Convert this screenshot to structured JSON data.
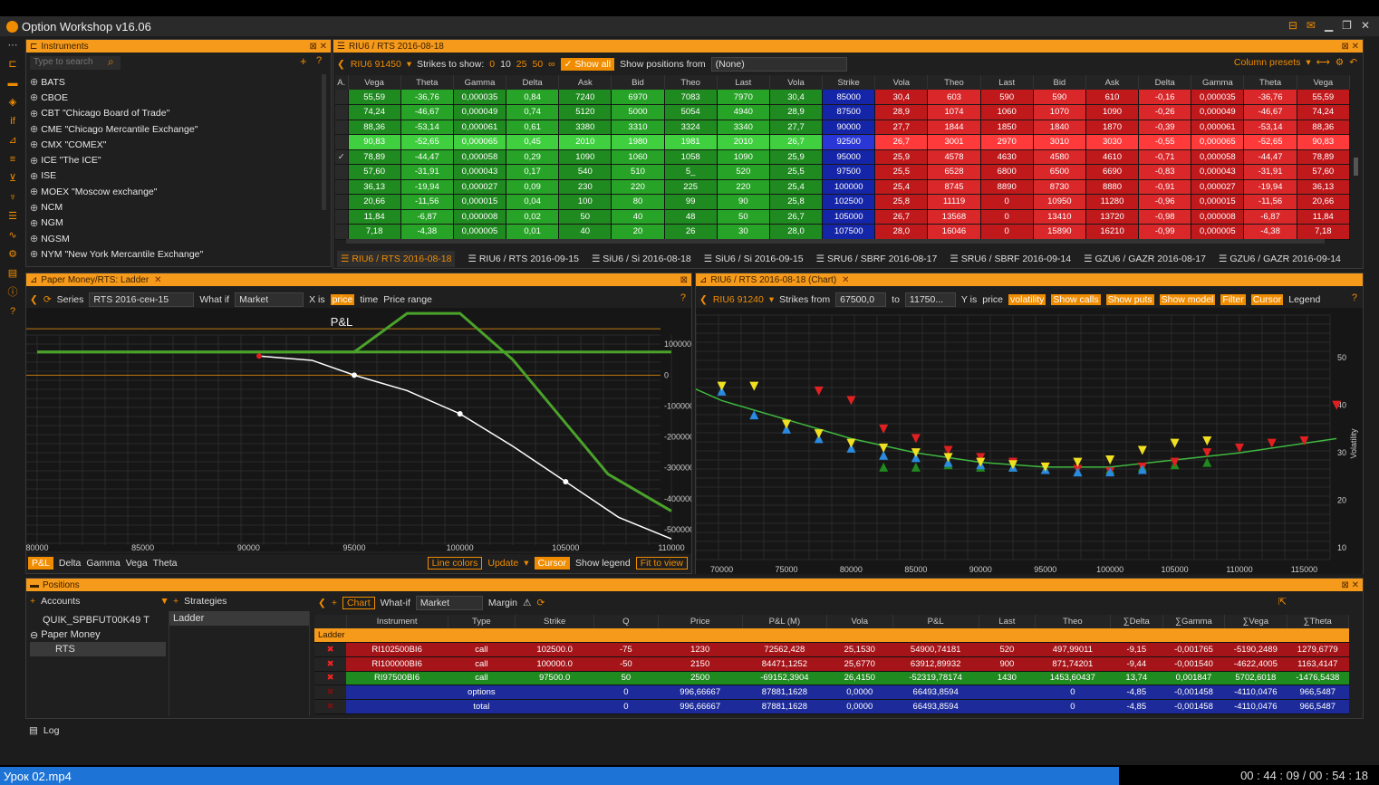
{
  "app": {
    "title": "Option Workshop v16.06"
  },
  "instruments": {
    "header": "Instruments",
    "search_placeholder": "Type to search",
    "items": [
      "BATS",
      "CBOE",
      "CBT \"Chicago Board of Trade\"",
      "CME \"Chicago Mercantile Exchange\"",
      "CMX \"COMEX\"",
      "ICE \"The ICE\"",
      "ISE",
      "MOEX \"Moscow exchange\"",
      "NCM",
      "NGM",
      "NGSM",
      "NYM \"New York Mercantile Exchange\""
    ]
  },
  "board": {
    "header": "RIU6 / RTS 2016-08-18",
    "future": "RIU6 91450",
    "strikes_label": "Strikes to show:",
    "strike_opts": [
      "0",
      "10",
      "25",
      "50",
      "∞"
    ],
    "show_all": "Show all",
    "positions_from_label": "Show positions from",
    "positions_from_value": "(None)",
    "column_presets": "Column presets",
    "columns": [
      "A.",
      "Vega",
      "Theta",
      "Gamma",
      "Delta",
      "Ask",
      "Bid",
      "Theo",
      "Last",
      "Vola",
      "Strike",
      "Vola",
      "Theo",
      "Last",
      "Bid",
      "Ask",
      "Delta",
      "Gamma",
      "Theta",
      "Vega"
    ],
    "rows": [
      {
        "check": "",
        "c": [
          "55,59",
          "-36,76",
          "0,000035",
          "0,84",
          "7240",
          "6970",
          "7083",
          "7970",
          "30,4"
        ],
        "strike": "85000",
        "p": [
          "30,4",
          "603",
          "590",
          "590",
          "610",
          "-0,16",
          "0,000035",
          "-36,76",
          "55,59"
        ]
      },
      {
        "check": "",
        "c": [
          "74,24",
          "-46,67",
          "0,000049",
          "0,74",
          "5120",
          "5000",
          "5054",
          "4940",
          "28,9"
        ],
        "strike": "87500",
        "p": [
          "28,9",
          "1074",
          "1060",
          "1070",
          "1090",
          "-0,26",
          "0,000049",
          "-46,67",
          "74,24"
        ]
      },
      {
        "check": "",
        "c": [
          "88,36",
          "-53,14",
          "0,000061",
          "0,61",
          "3380",
          "3310",
          "3324",
          "3340",
          "27,7"
        ],
        "strike": "90000",
        "p": [
          "27,7",
          "1844",
          "1850",
          "1840",
          "1870",
          "-0,39",
          "0,000061",
          "-53,14",
          "88,36"
        ]
      },
      {
        "check": "",
        "c": [
          "90,83",
          "-52,65",
          "0,000065",
          "0,45",
          "2010",
          "1980",
          "1981",
          "2010",
          "26,7"
        ],
        "strike": "92500",
        "p": [
          "26,7",
          "3001",
          "2970",
          "3010",
          "3030",
          "-0,55",
          "0,000065",
          "-52,65",
          "90,83"
        ]
      },
      {
        "check": "✓",
        "c": [
          "78,89",
          "-44,47",
          "0,000058",
          "0,29",
          "1090",
          "1060",
          "1058",
          "1090",
          "25,9"
        ],
        "strike": "95000",
        "p": [
          "25,9",
          "4578",
          "4630",
          "4580",
          "4610",
          "-0,71",
          "0,000058",
          "-44,47",
          "78,89"
        ]
      },
      {
        "check": "",
        "c": [
          "57,60",
          "-31,91",
          "0,000043",
          "0,17",
          "540",
          "510",
          "5_",
          "520",
          "25,5"
        ],
        "strike": "97500",
        "p": [
          "25,5",
          "6528",
          "6800",
          "6500",
          "6690",
          "-0,83",
          "0,000043",
          "-31,91",
          "57,60"
        ]
      },
      {
        "check": "",
        "c": [
          "36,13",
          "-19,94",
          "0,000027",
          "0,09",
          "230",
          "220",
          "225",
          "220",
          "25,4"
        ],
        "strike": "100000",
        "p": [
          "25,4",
          "8745",
          "8890",
          "8730",
          "8880",
          "-0,91",
          "0,000027",
          "-19,94",
          "36,13"
        ]
      },
      {
        "check": "",
        "c": [
          "20,66",
          "-11,56",
          "0,000015",
          "0,04",
          "100",
          "80",
          "99",
          "90",
          "25,8"
        ],
        "strike": "102500",
        "p": [
          "25,8",
          "11119",
          "0",
          "10950",
          "11280",
          "-0,96",
          "0,000015",
          "-11,56",
          "20,66"
        ]
      },
      {
        "check": "",
        "c": [
          "11,84",
          "-6,87",
          "0,000008",
          "0,02",
          "50",
          "40",
          "48",
          "50",
          "26,7"
        ],
        "strike": "105000",
        "p": [
          "26,7",
          "13568",
          "0",
          "13410",
          "13720",
          "-0,98",
          "0,000008",
          "-6,87",
          "11,84"
        ]
      },
      {
        "check": "",
        "c": [
          "7,18",
          "-4,38",
          "0,000005",
          "0,01",
          "40",
          "20",
          "26",
          "30",
          "28,0"
        ],
        "strike": "107500",
        "p": [
          "28,0",
          "16046",
          "0",
          "15890",
          "16210",
          "-0,99",
          "0,000005",
          "-4,38",
          "7,18"
        ]
      }
    ],
    "tabs": [
      "RIU6 / RTS 2016-08-18",
      "RIU6 / RTS 2016-09-15",
      "SiU6 / Si 2016-08-18",
      "SiU6 / Si 2016-09-15",
      "SRU6 / SBRF 2016-08-17",
      "SRU6 / SBRF 2016-09-14",
      "GZU6 / GAZR 2016-08-17",
      "GZU6 / GAZR 2016-09-14"
    ]
  },
  "pl": {
    "header": "Paper Money/RTS: Ladder",
    "series_label": "Series",
    "series_value": "RTS 2016-сен-15",
    "whatif_label": "What if",
    "whatif_value": "Market",
    "x_is": "X is",
    "x_price": "price",
    "x_time": "time",
    "price_range": "Price range",
    "bottom_tabs": [
      "P&L",
      "Delta",
      "Gamma",
      "Vega",
      "Theta"
    ],
    "line_colors": "Line colors",
    "update": "Update",
    "cursor": "Cursor",
    "show_legend": "Show legend",
    "fit_to_view": "Fit to view"
  },
  "volchart": {
    "header": "RIU6 / RTS 2016-08-18 (Chart)",
    "future": "RIU6 91240",
    "strikes_from": "Strikes from",
    "from_value": "67500,0",
    "to_label": "to",
    "to_value": "11750...",
    "y_is": "Y is",
    "y_price": "price",
    "y_vol": "volatility",
    "buttons": [
      "Show calls",
      "Show puts",
      "Show model",
      "Filter",
      "Cursor",
      "Legend"
    ]
  },
  "chart_data": [
    {
      "type": "line",
      "title": "P&L",
      "xlabel": "",
      "ylabel": "",
      "xlim": [
        80000,
        110000
      ],
      "ylim": [
        -550000,
        130000
      ],
      "x_ticks": [
        "80000",
        "85000",
        "90000",
        "95000",
        "100000",
        "105000",
        "110000"
      ],
      "y_ticks": [
        "100000",
        "0",
        "-100000",
        "-200000",
        "-300000",
        "-400000",
        "-500000"
      ],
      "series": [
        {
          "x": [
            80000,
            90000,
            93000,
            95000,
            100000,
            104000,
            107000,
            110000
          ],
          "values": [
            75000,
            75000,
            75000,
            75000,
            75000,
            75000,
            75000,
            75000
          ],
          "color": "#4aa22a"
        },
        {
          "x": [
            80000,
            90000,
            93000,
            95000,
            97500,
            100000,
            102500,
            107000,
            110000
          ],
          "values": [
            75000,
            75000,
            75000,
            75000,
            200000,
            200000,
            50000,
            -320000,
            -440000
          ],
          "color": "#4aa22a"
        },
        {
          "x": [
            90500,
            93000,
            95000,
            97500,
            100000,
            102500,
            105000,
            107500,
            110000
          ],
          "values": [
            62000,
            48000,
            0,
            -50000,
            -125000,
            -230000,
            -345000,
            -460000,
            -530000
          ],
          "color": "#ffffff"
        }
      ],
      "hlines": [
        0,
        150000
      ]
    },
    {
      "type": "scatter",
      "xlabel": "",
      "ylabel": "Volatility",
      "xlim": [
        68000,
        117000
      ],
      "ylim": [
        6,
        59
      ],
      "x_ticks": [
        "70000",
        "75000",
        "80000",
        "85000",
        "90000",
        "95000",
        "100000",
        "105000",
        "110000",
        "115000"
      ],
      "y_ticks": [
        "50",
        "40",
        "30",
        "20",
        "10"
      ],
      "model_curve": {
        "x": [
          67500,
          70000,
          75000,
          80000,
          85000,
          90000,
          95000,
          100000,
          105000,
          110000,
          115000,
          117500
        ],
        "values": [
          44,
          41,
          37,
          33,
          30,
          28,
          27,
          27,
          28.5,
          30,
          32,
          33
        ]
      },
      "ask_yellow": {
        "x": [
          70000,
          72500,
          75000,
          77500,
          80000,
          82500,
          85000,
          87500,
          90000,
          92500,
          95000,
          97500,
          100000,
          102500,
          105000,
          107500
        ],
        "values": [
          44,
          44,
          36,
          34,
          32,
          31,
          30,
          29,
          28,
          27.5,
          27,
          28,
          28.5,
          30.5,
          32,
          32.5
        ]
      },
      "bid_blue": {
        "x": [
          67500,
          70000,
          72500,
          75000,
          77500,
          80000,
          82500,
          85000,
          87500,
          90000,
          92500,
          95000,
          97500,
          100000,
          102500
        ],
        "values": [
          45,
          43,
          38,
          35,
          33,
          31,
          29.5,
          29,
          28,
          27.5,
          27,
          26.5,
          26,
          26,
          26.5
        ]
      },
      "red_marks": {
        "x": [
          77500,
          80000,
          82500,
          85000,
          87500,
          90000,
          92500,
          95000,
          97500,
          100000,
          102500,
          105000,
          107500,
          110000,
          112500,
          115000,
          117500
        ],
        "values": [
          43,
          41,
          35,
          33,
          30.5,
          29,
          28,
          27,
          26.5,
          26,
          27,
          28,
          30,
          31,
          32,
          32.5,
          40
        ]
      },
      "green_marks": {
        "x": [
          82500,
          85000,
          87500,
          90000,
          92500,
          95000,
          97500,
          100000,
          102500,
          105000,
          107500
        ],
        "values": [
          27,
          27,
          27.5,
          27,
          27,
          26.5,
          26,
          26.5,
          27,
          27.5,
          28
        ]
      }
    }
  ],
  "positions": {
    "header": "Positions",
    "accounts_label": "Accounts",
    "strategies_label": "Strategies",
    "accounts": [
      "QUIK_SPBFUT00K49",
      "Paper Money",
      "RTS"
    ],
    "account_flag": "T",
    "strategies": [
      "Ladder"
    ],
    "toolbar": {
      "chart": "Chart",
      "whatif": "What-if",
      "market": "Market",
      "margin": "Margin"
    },
    "columns": [
      "",
      "Instrument",
      "Type",
      "Strike",
      "Q",
      "Price",
      "P&L (M)",
      "Vola",
      "P&L",
      "Last",
      "Theo",
      "∑Delta",
      "∑Gamma",
      "∑Vega",
      "∑Theta"
    ],
    "group": "Ladder",
    "rows": [
      {
        "kind": "red",
        "c": [
          "RI102500BI6",
          "call",
          "102500.0",
          "-75",
          "1230",
          "72562,428",
          "25,1530",
          "54900,74181",
          "520",
          "497,99011",
          "-9,15",
          "-0,001765",
          "-5190,2489",
          "1279,6779"
        ]
      },
      {
        "kind": "red",
        "c": [
          "RI100000BI6",
          "call",
          "100000.0",
          "-50",
          "2150",
          "84471,1252",
          "25,6770",
          "63912,89932",
          "900",
          "871,74201",
          "-9,44",
          "-0,001540",
          "-4622,4005",
          "1163,4147"
        ]
      },
      {
        "kind": "green",
        "c": [
          "RI97500BI6",
          "call",
          "97500.0",
          "50",
          "2500",
          "-69152,3904",
          "26,4150",
          "-52319,78174",
          "1430",
          "1453,60437",
          "13,74",
          "0,001847",
          "5702,6018",
          "-1476,5438"
        ]
      },
      {
        "kind": "blue",
        "c": [
          "",
          "options",
          "",
          "0",
          "996,66667",
          "87881,1628",
          "0,0000",
          "66493,8594",
          "",
          "0",
          "-4,85",
          "-0,001458",
          "-4110,0476",
          "966,5487"
        ]
      },
      {
        "kind": "blue",
        "c": [
          "",
          "total",
          "",
          "0",
          "996,66667",
          "87881,1628",
          "0,0000",
          "66493,8594",
          "",
          "0",
          "-4,85",
          "-0,001458",
          "-4110,0476",
          "966,5487"
        ]
      }
    ]
  },
  "log": {
    "label": "Log"
  },
  "video": {
    "file": "Урок 02.mp4",
    "time": "00 : 44 : 09 / 00 : 54 : 18"
  }
}
